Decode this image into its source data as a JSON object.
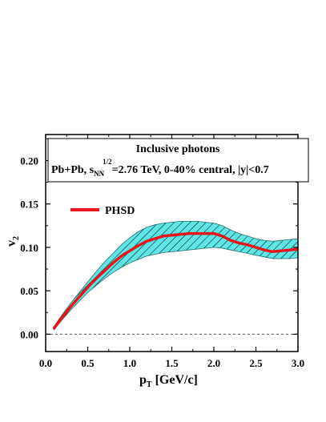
{
  "chart_data": {
    "type": "line",
    "title_line1": "Inclusive photons",
    "title_line2": {
      "prefix": "Pb+Pb, s",
      "subscript": "NN",
      "superscript": "1/2",
      "suffix": "=2.76 TeV, 0-40% central, |y|<0.7"
    },
    "xlabel": {
      "main": "p",
      "subscript": "T",
      "rest": " [GeV/c]"
    },
    "ylabel": {
      "main": "v",
      "subscript": "2"
    },
    "xlim": [
      0.0,
      3.0
    ],
    "ylim": [
      -0.02,
      0.23
    ],
    "xticks": [
      "0.0",
      "0.5",
      "1.0",
      "1.5",
      "2.0",
      "2.5",
      "3.0"
    ],
    "yticks": [
      "0.00",
      "0.05",
      "0.10",
      "0.15",
      "0.20"
    ],
    "zero_line": true,
    "legend_position": "top-left",
    "series": [
      {
        "name": "PHSD",
        "color": "#e8161b",
        "band_color": "#5ee6e6",
        "x": [
          0.1,
          0.2,
          0.3,
          0.4,
          0.5,
          0.6,
          0.7,
          0.8,
          0.9,
          1.0,
          1.1,
          1.2,
          1.3,
          1.4,
          1.5,
          1.6,
          1.7,
          1.8,
          1.9,
          2.0,
          2.1,
          2.2,
          2.3,
          2.4,
          2.5,
          2.6,
          2.7,
          2.8,
          2.9,
          3.0
        ],
        "y": [
          0.007,
          0.02,
          0.032,
          0.043,
          0.054,
          0.064,
          0.073,
          0.082,
          0.09,
          0.096,
          0.102,
          0.107,
          0.11,
          0.113,
          0.114,
          0.115,
          0.116,
          0.116,
          0.116,
          0.116,
          0.113,
          0.108,
          0.105,
          0.103,
          0.1,
          0.097,
          0.095,
          0.096,
          0.097,
          0.098
        ],
        "y_low": [
          0.005,
          0.017,
          0.028,
          0.038,
          0.048,
          0.056,
          0.064,
          0.071,
          0.077,
          0.082,
          0.086,
          0.09,
          0.092,
          0.094,
          0.095,
          0.096,
          0.097,
          0.098,
          0.099,
          0.1,
          0.099,
          0.097,
          0.095,
          0.093,
          0.091,
          0.089,
          0.087,
          0.087,
          0.087,
          0.088
        ],
        "y_high": [
          0.009,
          0.023,
          0.036,
          0.048,
          0.06,
          0.072,
          0.083,
          0.093,
          0.103,
          0.111,
          0.118,
          0.123,
          0.126,
          0.128,
          0.129,
          0.13,
          0.13,
          0.13,
          0.129,
          0.128,
          0.125,
          0.12,
          0.116,
          0.113,
          0.11,
          0.108,
          0.107,
          0.108,
          0.109,
          0.11
        ]
      }
    ]
  }
}
